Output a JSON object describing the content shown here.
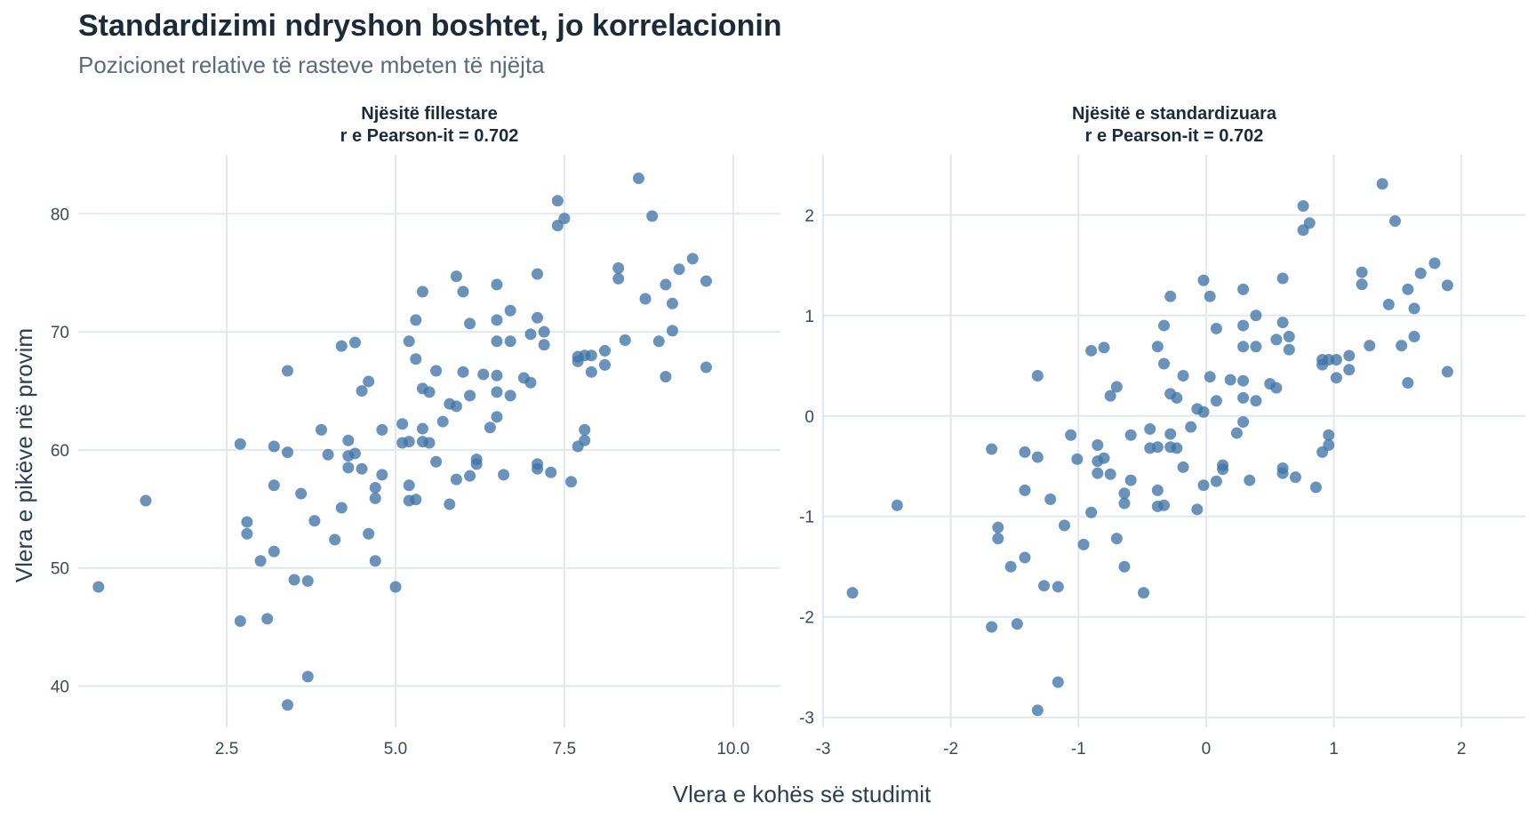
{
  "title": "Standardizimi ndryshon boshtet, jo korrelacionin",
  "subtitle": "Pozicionet relative të rasteve mbeten të njëjta",
  "xlabel": "Vlera e kohës së studimit",
  "ylabel": "Vlera e pikëve në provim",
  "colors": {
    "point": "#3f74a6",
    "grid": "#e3e8ee"
  },
  "chart_data": [
    {
      "type": "scatter",
      "title_line1": "Njësitë fillestare",
      "title_line2": "r e Pearson-it = 0.702",
      "xlim": [
        0.3,
        10.7
      ],
      "ylim": [
        36.5,
        85
      ],
      "xticks": [
        2.5,
        5.0,
        7.5,
        10.0
      ],
      "xtick_labels": [
        "2.5",
        "5.0",
        "7.5",
        "10.0"
      ],
      "yticks": [
        40,
        50,
        60,
        70,
        80
      ],
      "ytick_labels": [
        "40",
        "50",
        "60",
        "70",
        "80"
      ],
      "points": [
        [
          0.6,
          48.4
        ],
        [
          1.3,
          55.7
        ],
        [
          2.7,
          60.5
        ],
        [
          2.7,
          45.5
        ],
        [
          2.8,
          53.9
        ],
        [
          2.8,
          52.9
        ],
        [
          3.0,
          50.6
        ],
        [
          3.1,
          45.7
        ],
        [
          3.2,
          60.3
        ],
        [
          3.2,
          57.0
        ],
        [
          3.2,
          51.4
        ],
        [
          3.4,
          66.7
        ],
        [
          3.4,
          59.8
        ],
        [
          3.4,
          38.4
        ],
        [
          3.5,
          49.0
        ],
        [
          3.6,
          56.3
        ],
        [
          3.7,
          48.9
        ],
        [
          3.7,
          40.8
        ],
        [
          3.8,
          54.0
        ],
        [
          3.9,
          61.7
        ],
        [
          4.0,
          59.6
        ],
        [
          4.1,
          52.4
        ],
        [
          4.2,
          68.8
        ],
        [
          4.2,
          55.1
        ],
        [
          4.3,
          60.8
        ],
        [
          4.3,
          59.5
        ],
        [
          4.3,
          58.5
        ],
        [
          4.4,
          69.1
        ],
        [
          4.4,
          59.7
        ],
        [
          4.5,
          65.0
        ],
        [
          4.5,
          58.4
        ],
        [
          4.6,
          65.8
        ],
        [
          4.6,
          52.9
        ],
        [
          4.7,
          56.8
        ],
        [
          4.7,
          55.9
        ],
        [
          4.7,
          50.6
        ],
        [
          4.8,
          61.7
        ],
        [
          4.8,
          57.9
        ],
        [
          5.0,
          48.4
        ],
        [
          5.1,
          62.2
        ],
        [
          5.1,
          60.6
        ],
        [
          5.2,
          69.2
        ],
        [
          5.2,
          60.7
        ],
        [
          5.2,
          57.0
        ],
        [
          5.2,
          55.7
        ],
        [
          5.3,
          71.0
        ],
        [
          5.3,
          67.7
        ],
        [
          5.3,
          55.8
        ],
        [
          5.4,
          73.4
        ],
        [
          5.4,
          65.2
        ],
        [
          5.4,
          61.8
        ],
        [
          5.4,
          60.7
        ],
        [
          5.5,
          64.9
        ],
        [
          5.5,
          60.6
        ],
        [
          5.6,
          66.7
        ],
        [
          5.6,
          59.0
        ],
        [
          5.7,
          62.4
        ],
        [
          5.8,
          63.9
        ],
        [
          5.8,
          55.4
        ],
        [
          5.9,
          74.7
        ],
        [
          5.9,
          63.7
        ],
        [
          5.9,
          57.5
        ],
        [
          6.0,
          73.4
        ],
        [
          6.0,
          66.6
        ],
        [
          6.1,
          70.7
        ],
        [
          6.1,
          64.6
        ],
        [
          6.1,
          57.8
        ],
        [
          6.2,
          59.2
        ],
        [
          6.2,
          58.8
        ],
        [
          6.3,
          66.4
        ],
        [
          6.4,
          61.9
        ],
        [
          6.5,
          74.0
        ],
        [
          6.5,
          71.0
        ],
        [
          6.5,
          69.2
        ],
        [
          6.5,
          66.3
        ],
        [
          6.5,
          64.9
        ],
        [
          6.5,
          62.8
        ],
        [
          6.6,
          57.9
        ],
        [
          6.7,
          71.8
        ],
        [
          6.7,
          69.2
        ],
        [
          6.7,
          64.6
        ],
        [
          6.9,
          66.1
        ],
        [
          7.0,
          69.8
        ],
        [
          7.0,
          65.7
        ],
        [
          7.1,
          74.9
        ],
        [
          7.1,
          71.2
        ],
        [
          7.1,
          58.8
        ],
        [
          7.1,
          58.4
        ],
        [
          7.2,
          70.0
        ],
        [
          7.2,
          68.9
        ],
        [
          7.3,
          58.1
        ],
        [
          7.4,
          81.1
        ],
        [
          7.4,
          79.0
        ],
        [
          7.5,
          79.6
        ],
        [
          7.6,
          57.3
        ],
        [
          7.7,
          67.9
        ],
        [
          7.7,
          67.5
        ],
        [
          7.7,
          60.3
        ],
        [
          7.8,
          68.0
        ],
        [
          7.8,
          61.7
        ],
        [
          7.8,
          60.8
        ],
        [
          7.9,
          68.0
        ],
        [
          7.9,
          66.6
        ],
        [
          8.1,
          68.4
        ],
        [
          8.1,
          67.2
        ],
        [
          8.3,
          75.4
        ],
        [
          8.3,
          74.5
        ],
        [
          8.4,
          69.3
        ],
        [
          8.6,
          83.0
        ],
        [
          8.7,
          72.8
        ],
        [
          8.8,
          79.8
        ],
        [
          8.9,
          69.2
        ],
        [
          9.0,
          74.0
        ],
        [
          9.0,
          66.2
        ],
        [
          9.1,
          72.4
        ],
        [
          9.1,
          70.1
        ],
        [
          9.2,
          75.3
        ],
        [
          9.4,
          76.2
        ],
        [
          9.6,
          74.3
        ],
        [
          9.6,
          67.0
        ]
      ]
    },
    {
      "type": "scatter",
      "title_line1": "Njësitë e standardizuara",
      "title_line2": "r e Pearson-it = 0.702",
      "xlim": [
        -3.0,
        2.5
      ],
      "ylim": [
        -3.1,
        2.6
      ],
      "xticks": [
        -3,
        -2,
        -1,
        0,
        1,
        2
      ],
      "xtick_labels": [
        "-3",
        "-2",
        "-1",
        "0",
        "1",
        "2"
      ],
      "yticks": [
        -3,
        -2,
        -1,
        0,
        1,
        2
      ],
      "ytick_labels": [
        "-3",
        "-2",
        "-1",
        "0",
        "1",
        "2"
      ],
      "points": [
        [
          -2.77,
          -1.76
        ],
        [
          -2.42,
          -0.89
        ],
        [
          -1.68,
          -0.33
        ],
        [
          -1.68,
          -2.1
        ],
        [
          -1.63,
          -1.11
        ],
        [
          -1.63,
          -1.22
        ],
        [
          -1.53,
          -1.5
        ],
        [
          -1.48,
          -2.07
        ],
        [
          -1.42,
          -0.36
        ],
        [
          -1.42,
          -0.74
        ],
        [
          -1.42,
          -1.41
        ],
        [
          -1.32,
          0.4
        ],
        [
          -1.32,
          -0.41
        ],
        [
          -1.32,
          -2.93
        ],
        [
          -1.27,
          -1.69
        ],
        [
          -1.22,
          -0.83
        ],
        [
          -1.16,
          -1.7
        ],
        [
          -1.16,
          -2.65
        ],
        [
          -1.11,
          -1.09
        ],
        [
          -1.06,
          -0.19
        ],
        [
          -1.01,
          -0.43
        ],
        [
          -0.96,
          -1.28
        ],
        [
          -0.9,
          0.65
        ],
        [
          -0.9,
          -0.96
        ],
        [
          -0.85,
          -0.29
        ],
        [
          -0.85,
          -0.45
        ],
        [
          -0.85,
          -0.57
        ],
        [
          -0.8,
          0.68
        ],
        [
          -0.8,
          -0.42
        ],
        [
          -0.75,
          0.2
        ],
        [
          -0.75,
          -0.58
        ],
        [
          -0.7,
          0.29
        ],
        [
          -0.7,
          -1.22
        ],
        [
          -0.64,
          -0.77
        ],
        [
          -0.64,
          -0.87
        ],
        [
          -0.64,
          -1.5
        ],
        [
          -0.59,
          -0.19
        ],
        [
          -0.59,
          -0.64
        ],
        [
          -0.49,
          -1.76
        ],
        [
          -0.44,
          -0.13
        ],
        [
          -0.44,
          -0.32
        ],
        [
          -0.38,
          0.69
        ],
        [
          -0.38,
          -0.31
        ],
        [
          -0.38,
          -0.74
        ],
        [
          -0.38,
          -0.9
        ],
        [
          -0.33,
          0.9
        ],
        [
          -0.33,
          0.52
        ],
        [
          -0.33,
          -0.89
        ],
        [
          -0.28,
          1.19
        ],
        [
          -0.28,
          0.22
        ],
        [
          -0.28,
          -0.18
        ],
        [
          -0.28,
          -0.31
        ],
        [
          -0.23,
          0.18
        ],
        [
          -0.23,
          -0.32
        ],
        [
          -0.18,
          0.4
        ],
        [
          -0.18,
          -0.51
        ],
        [
          -0.12,
          -0.11
        ],
        [
          -0.07,
          0.07
        ],
        [
          -0.07,
          -0.93
        ],
        [
          -0.02,
          1.35
        ],
        [
          -0.02,
          0.04
        ],
        [
          -0.02,
          -0.69
        ],
        [
          0.03,
          1.19
        ],
        [
          0.03,
          0.39
        ],
        [
          0.08,
          0.87
        ],
        [
          0.08,
          0.15
        ],
        [
          0.08,
          -0.65
        ],
        [
          0.13,
          -0.49
        ],
        [
          0.13,
          -0.53
        ],
        [
          0.19,
          0.36
        ],
        [
          0.24,
          -0.17
        ],
        [
          0.29,
          1.26
        ],
        [
          0.29,
          0.9
        ],
        [
          0.29,
          0.69
        ],
        [
          0.29,
          0.35
        ],
        [
          0.29,
          0.18
        ],
        [
          0.29,
          -0.06
        ],
        [
          0.34,
          -0.64
        ],
        [
          0.39,
          1.0
        ],
        [
          0.39,
          0.69
        ],
        [
          0.39,
          0.15
        ],
        [
          0.5,
          0.32
        ],
        [
          0.55,
          0.76
        ],
        [
          0.55,
          0.28
        ],
        [
          0.6,
          1.37
        ],
        [
          0.6,
          0.93
        ],
        [
          0.6,
          -0.52
        ],
        [
          0.6,
          -0.57
        ],
        [
          0.65,
          0.79
        ],
        [
          0.65,
          0.66
        ],
        [
          0.7,
          -0.61
        ],
        [
          0.76,
          2.09
        ],
        [
          0.76,
          1.85
        ],
        [
          0.81,
          1.92
        ],
        [
          0.86,
          -0.71
        ],
        [
          0.91,
          0.56
        ],
        [
          0.91,
          0.51
        ],
        [
          0.91,
          -0.36
        ],
        [
          0.96,
          0.56
        ],
        [
          0.96,
          -0.19
        ],
        [
          0.96,
          -0.29
        ],
        [
          1.02,
          0.56
        ],
        [
          1.02,
          0.38
        ],
        [
          1.12,
          0.6
        ],
        [
          1.12,
          0.46
        ],
        [
          1.22,
          1.43
        ],
        [
          1.22,
          1.31
        ],
        [
          1.28,
          0.7
        ],
        [
          1.38,
          2.31
        ],
        [
          1.43,
          1.11
        ],
        [
          1.48,
          1.94
        ],
        [
          1.53,
          0.7
        ],
        [
          1.58,
          1.26
        ],
        [
          1.58,
          0.33
        ],
        [
          1.63,
          1.07
        ],
        [
          1.63,
          0.79
        ],
        [
          1.68,
          1.42
        ],
        [
          1.79,
          1.52
        ],
        [
          1.89,
          1.3
        ],
        [
          1.89,
          0.44
        ]
      ]
    }
  ]
}
